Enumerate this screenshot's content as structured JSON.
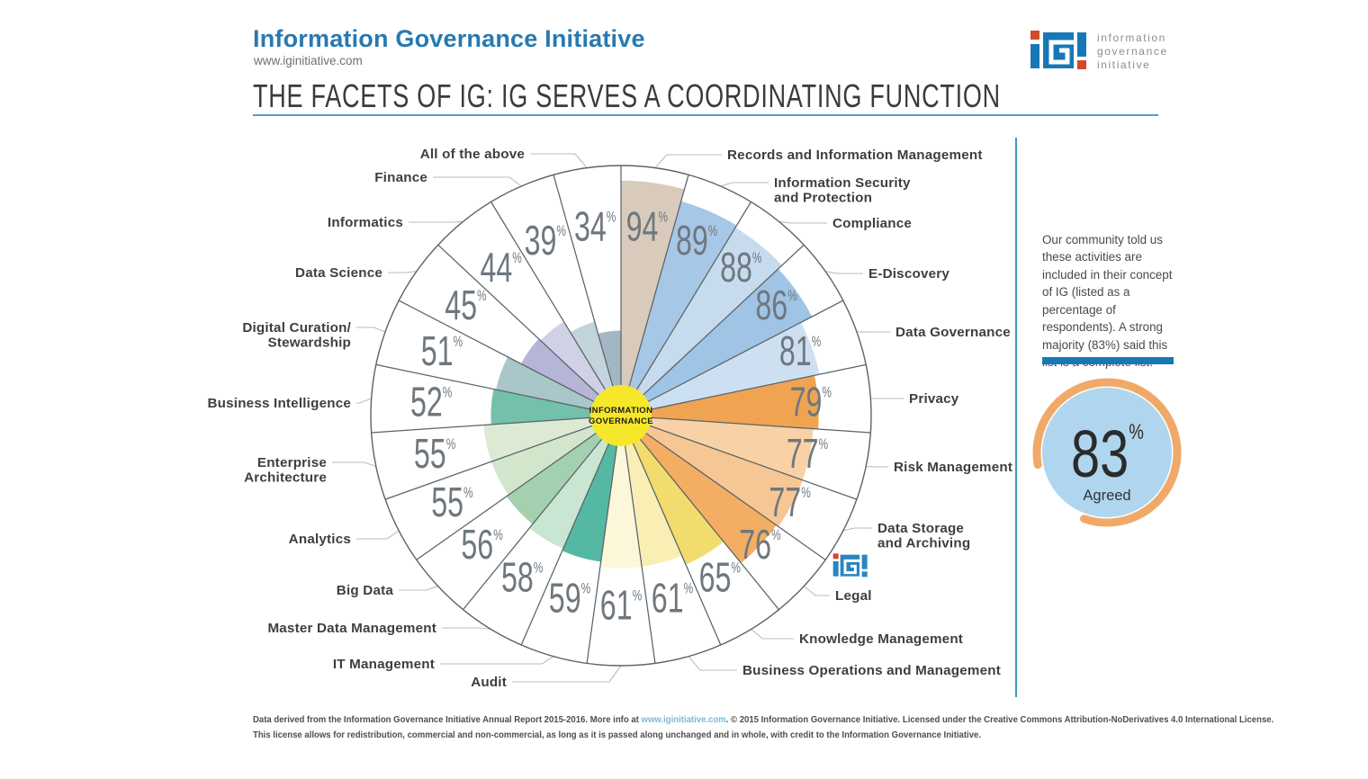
{
  "header": {
    "title": "Information Governance Initiative",
    "url": "www.iginitiative.com",
    "logo_lines": [
      "information",
      "governance",
      "initiative"
    ]
  },
  "page_title": "THE FACETS OF IG: IG SERVES A COORDINATING FUNCTION",
  "sidebar": {
    "note": "Our community told us these activities are included in their concept of IG (listed as a percentage of respondents). A strong majority (83%) said this list is a complete list.",
    "badge_value": "83",
    "badge_unit": "%",
    "badge_label": "Agreed",
    "badge_fill": "#b0d6ef",
    "badge_ring": "#f0a968"
  },
  "footer": {
    "line1_pre": "Data derived from the Information Governance Initiative Annual Report 2015-2016. More info at ",
    "line1_link": "www.iginitiative.com",
    "line1_post": ". © 2015 Information Governance Initiative. Licensed under the Creative Commons Attribution-NoDerivatives 4.0 International License.",
    "line2": "This license allows for redistribution, commercial and non-commercial, as long as it is passed along unchanged and in whole, with credit to the Information Governance Initiative."
  },
  "chart_data": {
    "type": "radial-wedge-pie",
    "title": "THE FACETS OF IG: IG SERVES A COORDINATING FUNCTION",
    "description": "23 equal-angle wedges; colored sector radius is proportional to percent of respondents. Order is clockwise from 12 o'clock.",
    "unit": "%",
    "center_label_line1": "INFORMATION",
    "center_label_line2": "GOVERNANCE",
    "center_color": "#f6e72b",
    "outline_color": "#59626 7",
    "value_color": "#6f777e",
    "wedges": [
      {
        "label": "Records and Information Management",
        "value": 94,
        "color": "#d9cbbc"
      },
      {
        "label": "Information Security and Protection",
        "value": 89,
        "color": "#a7c7e6"
      },
      {
        "label": "Compliance",
        "value": 88,
        "color": "#c6dbee"
      },
      {
        "label": "E-Discovery",
        "value": 86,
        "color": "#9fc4e5"
      },
      {
        "label": "Data Governance",
        "value": 81,
        "color": "#cde0f2"
      },
      {
        "label": "Privacy",
        "value": 79,
        "color": "#f0a452"
      },
      {
        "label": "Risk Management",
        "value": 77,
        "color": "#f8d2a6"
      },
      {
        "label": "Data Storage and Archiving",
        "value": 77,
        "color": "#f6c795"
      },
      {
        "label": "Legal",
        "value": 76,
        "color": "#f3ae63"
      },
      {
        "label": "Knowledge Management",
        "value": 65,
        "color": "#f2dc6d"
      },
      {
        "label": "Business Operations and Management",
        "value": 61,
        "color": "#f9efb5"
      },
      {
        "label": "Audit",
        "value": 61,
        "color": "#fcf7d8"
      },
      {
        "label": "IT Management",
        "value": 59,
        "color": "#54b8a3"
      },
      {
        "label": "Master Data Management",
        "value": 58,
        "color": "#c8e6d2"
      },
      {
        "label": "Big Data",
        "value": 56,
        "color": "#a3d1b0"
      },
      {
        "label": "Analytics",
        "value": 55,
        "color": "#d2e6cc"
      },
      {
        "label": "Enterprise Architecture",
        "value": 55,
        "color": "#dcead3"
      },
      {
        "label": "Business Intelligence",
        "value": 52,
        "color": "#73c0ab"
      },
      {
        "label": "Digital Curation/Stewardship",
        "value": 51,
        "color": "#a9c6c8"
      },
      {
        "label": "Data Science",
        "value": 45,
        "color": "#b5b5d8"
      },
      {
        "label": "Informatics",
        "value": 44,
        "color": "#d0d1e6"
      },
      {
        "label": "Finance",
        "value": 39,
        "color": "#c4d4dc"
      },
      {
        "label": "All of the above",
        "value": 34,
        "color": "#a3b6c4"
      }
    ]
  }
}
